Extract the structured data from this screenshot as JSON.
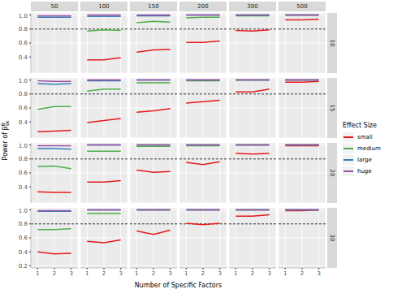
{
  "chart_data": {
    "type": "line",
    "x_label": "Number of Specific Factors",
    "y_label": "Power of β",
    "y_label_sub": "sk",
    "y_label_sup": "B",
    "legend_title": "Effect Size",
    "columns": [
      50,
      100,
      150,
      200,
      300,
      500
    ],
    "rows": [
      10,
      15,
      20,
      30
    ],
    "x": [
      1,
      2,
      3
    ],
    "xlim": [
      0.6,
      3.4
    ],
    "xticks": [
      1,
      2,
      3
    ],
    "ylim": [
      0.17,
      1.03
    ],
    "yticks": [
      0.2,
      0.4,
      0.6,
      0.8,
      {
        "value": 1,
        "label": "1.0"
      }
    ],
    "reference_line": 0.8,
    "grid": true,
    "line_style": "solid",
    "series": [
      {
        "name": "small",
        "color": "#e41a1c"
      },
      {
        "name": "medium",
        "color": "#4daf4a"
      },
      {
        "name": "large",
        "color": "#377eb8"
      },
      {
        "name": "huge",
        "color": "#984ea3"
      }
    ],
    "panels": [
      {
        "column": 50,
        "row": 10,
        "values": {
          "small": null,
          "medium": null,
          "large": [
            0.97,
            0.97,
            0.97
          ],
          "huge": [
            0.99,
            0.99,
            0.99
          ]
        }
      },
      {
        "column": 100,
        "row": 10,
        "values": {
          "small": [
            0.36,
            0.36,
            0.39
          ],
          "medium": [
            0.77,
            0.79,
            0.78
          ],
          "large": [
            0.98,
            0.98,
            0.98
          ],
          "huge": [
            1,
            1,
            1
          ]
        }
      },
      {
        "column": 150,
        "row": 10,
        "values": {
          "small": [
            0.47,
            0.5,
            0.51
          ],
          "medium": [
            0.89,
            0.91,
            0.9
          ],
          "large": [
            0.99,
            0.99,
            0.99
          ],
          "huge": [
            1,
            1,
            1
          ]
        }
      },
      {
        "column": 200,
        "row": 10,
        "values": {
          "small": [
            0.61,
            0.61,
            0.63
          ],
          "medium": [
            0.96,
            0.97,
            0.97
          ],
          "large": [
            1,
            1,
            1
          ],
          "huge": [
            1,
            1,
            1
          ]
        }
      },
      {
        "column": 300,
        "row": 10,
        "values": {
          "small": [
            0.78,
            0.77,
            0.79
          ],
          "medium": [
            0.99,
            0.99,
            0.99
          ],
          "large": [
            1,
            1,
            1
          ],
          "huge": [
            1,
            1,
            1
          ]
        }
      },
      {
        "column": 500,
        "row": 10,
        "values": {
          "small": [
            0.93,
            0.93,
            0.94
          ],
          "medium": [
            1,
            1,
            1
          ],
          "large": [
            1,
            1,
            1
          ],
          "huge": [
            1,
            1,
            1
          ]
        }
      },
      {
        "column": 50,
        "row": 15,
        "values": {
          "small": [
            0.26,
            0.27,
            0.28
          ],
          "medium": [
            0.58,
            0.62,
            0.62
          ],
          "large": [
            0.95,
            0.94,
            0.95
          ],
          "huge": [
            0.99,
            0.98,
            0.98
          ]
        }
      },
      {
        "column": 100,
        "row": 15,
        "values": {
          "small": [
            0.39,
            0.42,
            0.45
          ],
          "medium": [
            0.84,
            0.87,
            0.87
          ],
          "large": [
            0.99,
            0.99,
            0.99
          ],
          "huge": [
            1,
            1,
            1
          ]
        }
      },
      {
        "column": 150,
        "row": 15,
        "values": {
          "small": [
            0.54,
            0.56,
            0.59
          ],
          "medium": [
            0.96,
            0.96,
            0.96
          ],
          "large": [
            1,
            1,
            1
          ],
          "huge": [
            1,
            1,
            1
          ]
        }
      },
      {
        "column": 200,
        "row": 15,
        "values": {
          "small": [
            0.67,
            0.69,
            0.71
          ],
          "medium": [
            0.99,
            0.99,
            0.99
          ],
          "large": [
            1,
            1,
            1
          ],
          "huge": [
            1,
            1,
            1
          ]
        }
      },
      {
        "column": 300,
        "row": 15,
        "values": {
          "small": [
            0.83,
            0.83,
            0.87
          ],
          "medium": [
            1,
            1,
            1
          ],
          "large": [
            1,
            1,
            1
          ],
          "huge": [
            1,
            1,
            1
          ]
        }
      },
      {
        "column": 500,
        "row": 15,
        "values": {
          "small": [
            0.97,
            0.97,
            0.98
          ],
          "medium": [
            1,
            1,
            1
          ],
          "large": [
            1,
            1,
            1
          ],
          "huge": [
            1,
            1,
            1
          ]
        }
      },
      {
        "column": 50,
        "row": 20,
        "values": {
          "small": [
            0.33,
            0.32,
            0.32
          ],
          "medium": [
            0.69,
            0.7,
            0.66
          ],
          "large": [
            0.95,
            0.95,
            0.94
          ],
          "huge": [
            0.99,
            0.99,
            0.99
          ]
        }
      },
      {
        "column": 100,
        "row": 20,
        "values": {
          "small": [
            0.47,
            0.47,
            0.49
          ],
          "medium": [
            0.91,
            0.91,
            0.91
          ],
          "large": [
            1,
            1,
            1
          ],
          "huge": [
            1,
            1,
            1
          ]
        }
      },
      {
        "column": 150,
        "row": 20,
        "values": {
          "small": [
            0.64,
            0.61,
            0.62
          ],
          "medium": [
            0.98,
            0.98,
            0.98
          ],
          "large": [
            1,
            1,
            1
          ],
          "huge": [
            1,
            1,
            1
          ]
        }
      },
      {
        "column": 200,
        "row": 20,
        "values": {
          "small": [
            0.75,
            0.72,
            0.76
          ],
          "medium": [
            0.99,
            0.99,
            0.99
          ],
          "large": [
            1,
            1,
            1
          ],
          "huge": [
            1,
            1,
            1
          ]
        }
      },
      {
        "column": 300,
        "row": 20,
        "values": {
          "small": [
            0.88,
            0.87,
            0.88
          ],
          "medium": [
            1,
            1,
            1
          ],
          "large": [
            1,
            1,
            1
          ],
          "huge": [
            1,
            1,
            1
          ]
        }
      },
      {
        "column": 500,
        "row": 20,
        "values": {
          "small": [
            0.99,
            0.99,
            0.99
          ],
          "medium": [
            1,
            1,
            1
          ],
          "large": [
            1,
            1,
            1
          ],
          "huge": [
            1,
            1,
            1
          ]
        }
      },
      {
        "column": 50,
        "row": 30,
        "values": {
          "small": [
            0.4,
            0.37,
            0.38
          ],
          "medium": [
            0.72,
            0.72,
            0.73
          ],
          "large": [
            0.98,
            0.98,
            0.98
          ],
          "huge": [
            0.99,
            0.99,
            0.99
          ]
        }
      },
      {
        "column": 100,
        "row": 30,
        "values": {
          "small": [
            0.55,
            0.53,
            0.57
          ],
          "medium": [
            0.95,
            0.95,
            0.95
          ],
          "large": [
            1,
            1,
            1
          ],
          "huge": [
            1,
            1,
            1
          ]
        }
      },
      {
        "column": 150,
        "row": 30,
        "values": {
          "small": [
            0.7,
            0.65,
            0.71
          ],
          "medium": [
            1,
            1,
            1
          ],
          "large": [
            1,
            1,
            1
          ],
          "huge": [
            1,
            1,
            1
          ]
        }
      },
      {
        "column": 200,
        "row": 30,
        "values": {
          "small": [
            0.81,
            0.79,
            0.81
          ],
          "medium": [
            1,
            1,
            1
          ],
          "large": [
            1,
            1,
            1
          ],
          "huge": [
            1,
            1,
            1
          ]
        }
      },
      {
        "column": 300,
        "row": 30,
        "values": {
          "small": [
            0.91,
            0.91,
            0.93
          ],
          "medium": [
            1,
            1,
            1
          ],
          "large": [
            1,
            1,
            1
          ],
          "huge": [
            1,
            1,
            1
          ]
        }
      },
      {
        "column": 500,
        "row": 30,
        "values": {
          "small": [
            0.99,
            0.99,
            1
          ],
          "medium": [
            1,
            1,
            1
          ],
          "large": [
            1,
            1,
            1
          ],
          "huge": [
            1,
            1,
            1
          ]
        }
      }
    ]
  }
}
